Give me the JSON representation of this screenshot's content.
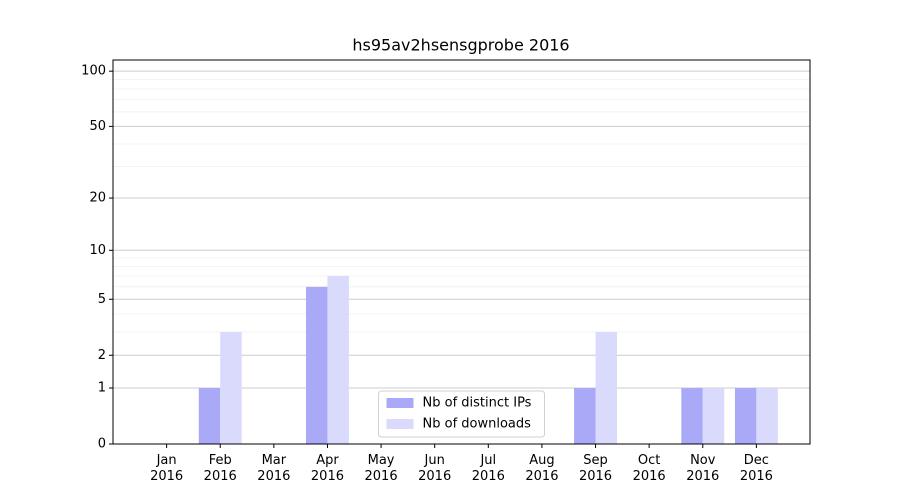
{
  "chart_data": {
    "type": "bar",
    "title": "hs95av2hsensgprobe 2016",
    "categories": [
      "Jan\n2016",
      "Feb\n2016",
      "Mar\n2016",
      "Apr\n2016",
      "May\n2016",
      "Jun\n2016",
      "Jul\n2016",
      "Aug\n2016",
      "Sep\n2016",
      "Oct\n2016",
      "Nov\n2016",
      "Dec\n2016"
    ],
    "series": [
      {
        "name": "Nb of distinct IPs",
        "color": "#a9a9f8",
        "values": [
          0,
          1,
          0,
          6,
          0,
          0,
          0,
          0,
          1,
          0,
          1,
          1
        ]
      },
      {
        "name": "Nb of downloads",
        "color": "#dadafc",
        "values": [
          0,
          3,
          0,
          7,
          0,
          0,
          0,
          0,
          3,
          0,
          1,
          1
        ]
      }
    ],
    "y_scale": "log1p",
    "ylim": [
      0,
      115
    ],
    "yticks": [
      0,
      1,
      2,
      5,
      10,
      20,
      50,
      100
    ],
    "minor_yticks": [
      3,
      4,
      6,
      7,
      8,
      9,
      30,
      40,
      60,
      70,
      80,
      90
    ],
    "grid": true,
    "legend": "lower center"
  }
}
